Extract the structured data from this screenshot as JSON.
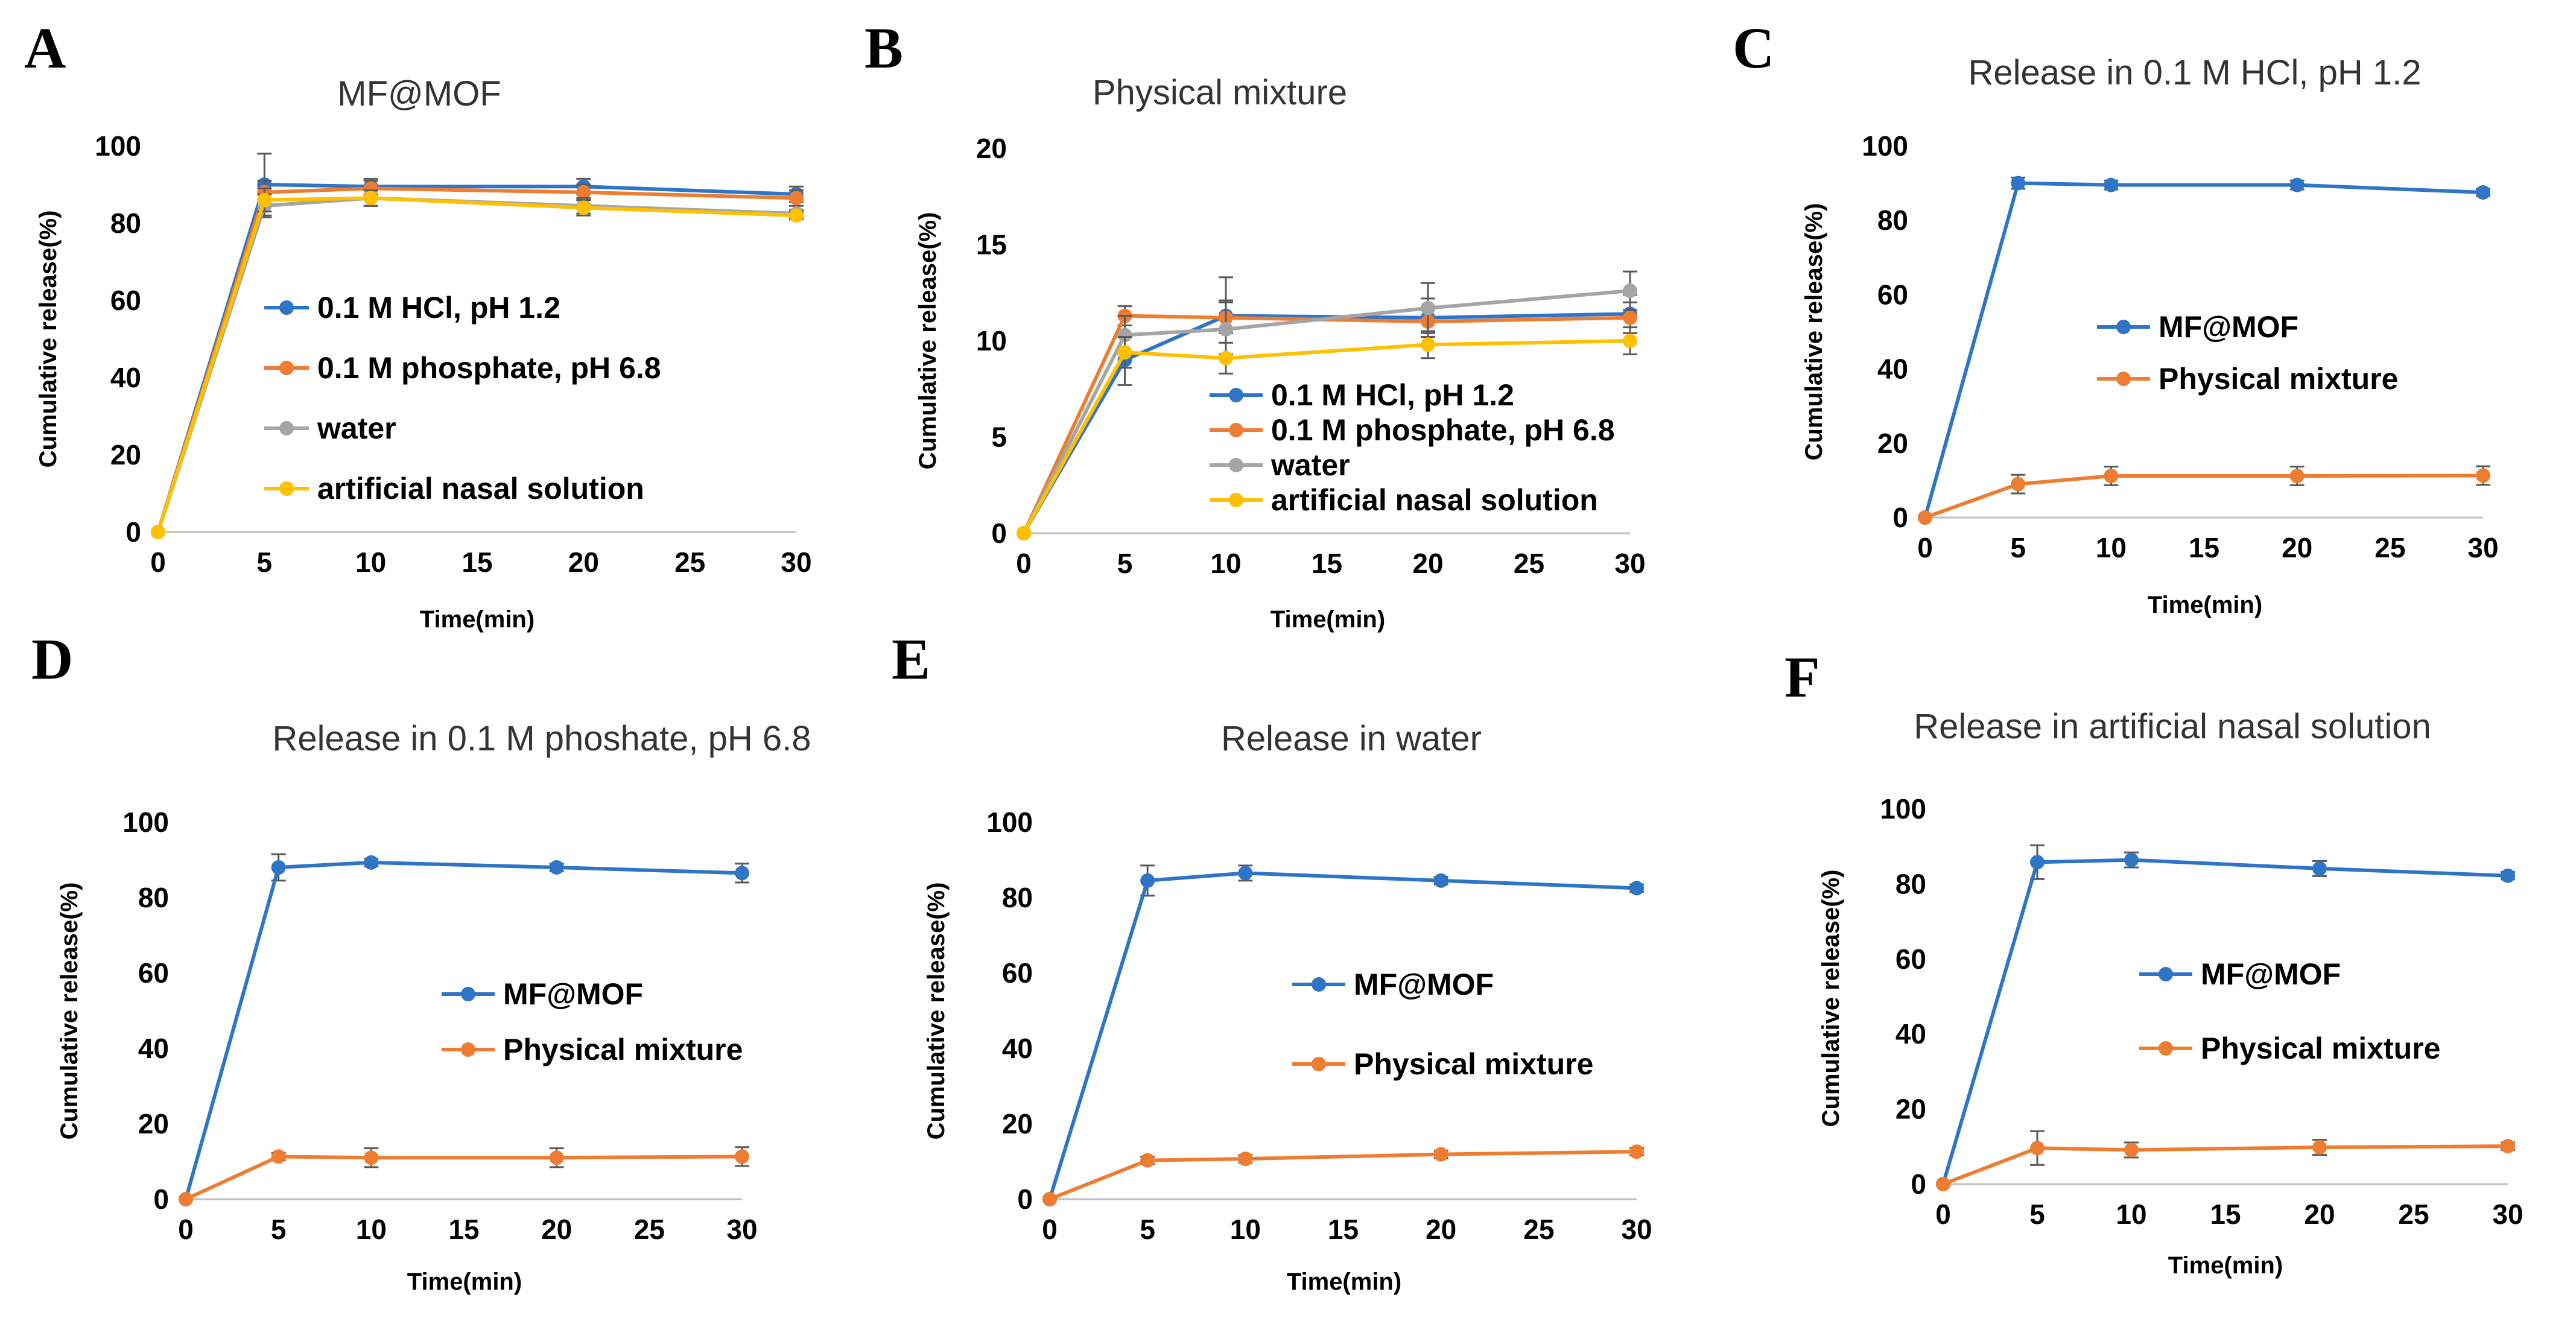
{
  "panels": [
    {
      "letter": "A"
    },
    {
      "letter": "B"
    },
    {
      "letter": "C"
    },
    {
      "letter": "D"
    },
    {
      "letter": "E"
    },
    {
      "letter": "F"
    }
  ],
  "colors": {
    "blue": "#2E75C8",
    "orange": "#EE7D31",
    "gray": "#A5A5A5",
    "yellow": "#FFC000",
    "axis": "#BFBFBF",
    "errorbar": "#595959"
  },
  "chart_data": [
    {
      "type": "line",
      "title": "MF@MOF",
      "xlabel": "Time(min)",
      "ylabel": "Cumulative release(%)",
      "x": [
        0,
        5,
        10,
        20,
        30
      ],
      "xlim": [
        0,
        30
      ],
      "xticks": [
        "0",
        "5",
        "10",
        "15",
        "20",
        "25",
        "30"
      ],
      "ylim": [
        0,
        100
      ],
      "yticks": [
        "0",
        "20",
        "40",
        "60",
        "80",
        "100"
      ],
      "series": [
        {
          "name": "0.1 M HCl, pH 1.2",
          "color": "blue",
          "values": [
            0,
            90,
            89.5,
            89.5,
            87.5
          ],
          "errors": [
            0,
            8,
            2,
            2,
            2
          ]
        },
        {
          "name": "0.1 M phosphate, pH 6.8",
          "color": "orange",
          "values": [
            0,
            88,
            89,
            88,
            86.5
          ],
          "errors": [
            0,
            3,
            2,
            2,
            2
          ]
        },
        {
          "name": "water",
          "color": "gray",
          "values": [
            0,
            84.5,
            86.5,
            84.5,
            82.5
          ],
          "errors": [
            0,
            3,
            2,
            2,
            1
          ]
        },
        {
          "name": "artificial nasal solution",
          "color": "yellow",
          "values": [
            0,
            86,
            86.5,
            84,
            82
          ],
          "errors": [
            0,
            3,
            2,
            2,
            1
          ]
        }
      ],
      "legend": "center-left"
    },
    {
      "type": "line",
      "title": "Physical mixture",
      "xlabel": "Time(min)",
      "ylabel": "Cumulative release(%)",
      "x": [
        0,
        5,
        10,
        20,
        30
      ],
      "xlim": [
        0,
        30
      ],
      "xticks": [
        "0",
        "5",
        "10",
        "15",
        "20",
        "25",
        "30"
      ],
      "ylim": [
        0,
        20
      ],
      "yticks": [
        "0",
        "5",
        "10",
        "15",
        "20"
      ],
      "series": [
        {
          "name": "0.1 M HCl, pH 1.2",
          "color": "blue",
          "values": [
            0,
            9,
            11.3,
            11.2,
            11.4
          ],
          "errors": [
            0,
            1.3,
            2,
            1,
            1
          ]
        },
        {
          "name": "0.1 M phosphate, pH 6.8",
          "color": "orange",
          "values": [
            0,
            11.3,
            11.2,
            11,
            11.2
          ],
          "errors": [
            0,
            0.5,
            0.8,
            0.8,
            0.8
          ]
        },
        {
          "name": "water",
          "color": "gray",
          "values": [
            0,
            10.3,
            10.6,
            11.7,
            12.6
          ],
          "errors": [
            0,
            1,
            1.5,
            1.3,
            1
          ]
        },
        {
          "name": "artificial nasal solution",
          "color": "yellow",
          "values": [
            0,
            9.4,
            9.1,
            9.8,
            10
          ],
          "errors": [
            0,
            0.8,
            0.8,
            0.7,
            0.7
          ]
        }
      ],
      "legend": "bottom-right"
    },
    {
      "type": "line",
      "title": "Release in 0.1 M HCl, pH 1.2",
      "xlabel": "Time(min)",
      "ylabel": "Cumulative release(%)",
      "x": [
        0,
        5,
        10,
        20,
        30
      ],
      "xlim": [
        0,
        30
      ],
      "xticks": [
        "0",
        "5",
        "10",
        "15",
        "20",
        "25",
        "30"
      ],
      "ylim": [
        0,
        100
      ],
      "yticks": [
        "0",
        "20",
        "40",
        "60",
        "80",
        "100"
      ],
      "series": [
        {
          "name": "MF@MOF",
          "color": "blue",
          "values": [
            0,
            90,
            89.5,
            89.5,
            87.5
          ],
          "errors": [
            0,
            1.5,
            1.2,
            1.2,
            1
          ]
        },
        {
          "name": "Physical mixture",
          "color": "orange",
          "values": [
            0,
            9,
            11.2,
            11.2,
            11.3
          ],
          "errors": [
            0,
            2.5,
            2.5,
            2.5,
            2.5
          ]
        }
      ],
      "legend": "center-right"
    },
    {
      "type": "line",
      "title": "Release in 0.1 M phoshate, pH 6.8",
      "xlabel": "Time(min)",
      "ylabel": "Cumulative release(%)",
      "x": [
        0,
        5,
        10,
        20,
        30
      ],
      "xlim": [
        0,
        30
      ],
      "xticks": [
        "0",
        "5",
        "10",
        "15",
        "20",
        "25",
        "30"
      ],
      "ylim": [
        0,
        100
      ],
      "yticks": [
        "0",
        "20",
        "40",
        "60",
        "80",
        "100"
      ],
      "series": [
        {
          "name": "MF@MOF",
          "color": "blue",
          "values": [
            0,
            88,
            89.3,
            88,
            86.5
          ],
          "errors": [
            0,
            3.5,
            1,
            1,
            2.5
          ]
        },
        {
          "name": "Physical mixture",
          "color": "orange",
          "values": [
            0,
            11.3,
            11,
            11,
            11.3
          ],
          "errors": [
            0,
            1,
            2.5,
            2.5,
            2.5
          ]
        }
      ],
      "legend": "center-right"
    },
    {
      "type": "line",
      "title": "Release in water",
      "xlabel": "Time(min)",
      "ylabel": "Cumulative release(%)",
      "x": [
        0,
        5,
        10,
        20,
        30
      ],
      "xlim": [
        0,
        30
      ],
      "xticks": [
        "0",
        "5",
        "10",
        "15",
        "20",
        "25",
        "30"
      ],
      "ylim": [
        0,
        100
      ],
      "yticks": [
        "0",
        "20",
        "40",
        "60",
        "80",
        "100"
      ],
      "series": [
        {
          "name": "MF@MOF",
          "color": "blue",
          "values": [
            0,
            84.5,
            86.5,
            84.5,
            82.5
          ],
          "errors": [
            0,
            4,
            2,
            1,
            1
          ]
        },
        {
          "name": "Physical mixture",
          "color": "orange",
          "values": [
            0,
            10.3,
            10.7,
            11.9,
            12.6
          ],
          "errors": [
            0,
            1,
            1,
            1,
            1
          ]
        }
      ],
      "legend": "center-right"
    },
    {
      "type": "line",
      "title": "Release in artificial nasal solution",
      "xlabel": "Time(min)",
      "ylabel": "Cumulative release(%)",
      "x": [
        0,
        5,
        10,
        20,
        30
      ],
      "xlim": [
        0,
        30
      ],
      "xticks": [
        "0",
        "5",
        "10",
        "15",
        "20",
        "25",
        "30"
      ],
      "ylim": [
        0,
        100
      ],
      "yticks": [
        "0",
        "20",
        "40",
        "60",
        "80",
        "100"
      ],
      "series": [
        {
          "name": "MF@MOF",
          "color": "blue",
          "values": [
            0,
            85.8,
            86.4,
            84.1,
            82.2
          ],
          "errors": [
            0,
            4.5,
            2,
            2,
            1
          ]
        },
        {
          "name": "Physical mixture",
          "color": "orange",
          "values": [
            0,
            9.6,
            9.1,
            9.8,
            10.1
          ],
          "errors": [
            0,
            4.5,
            2,
            2,
            1
          ]
        }
      ],
      "legend": "center-right"
    }
  ]
}
